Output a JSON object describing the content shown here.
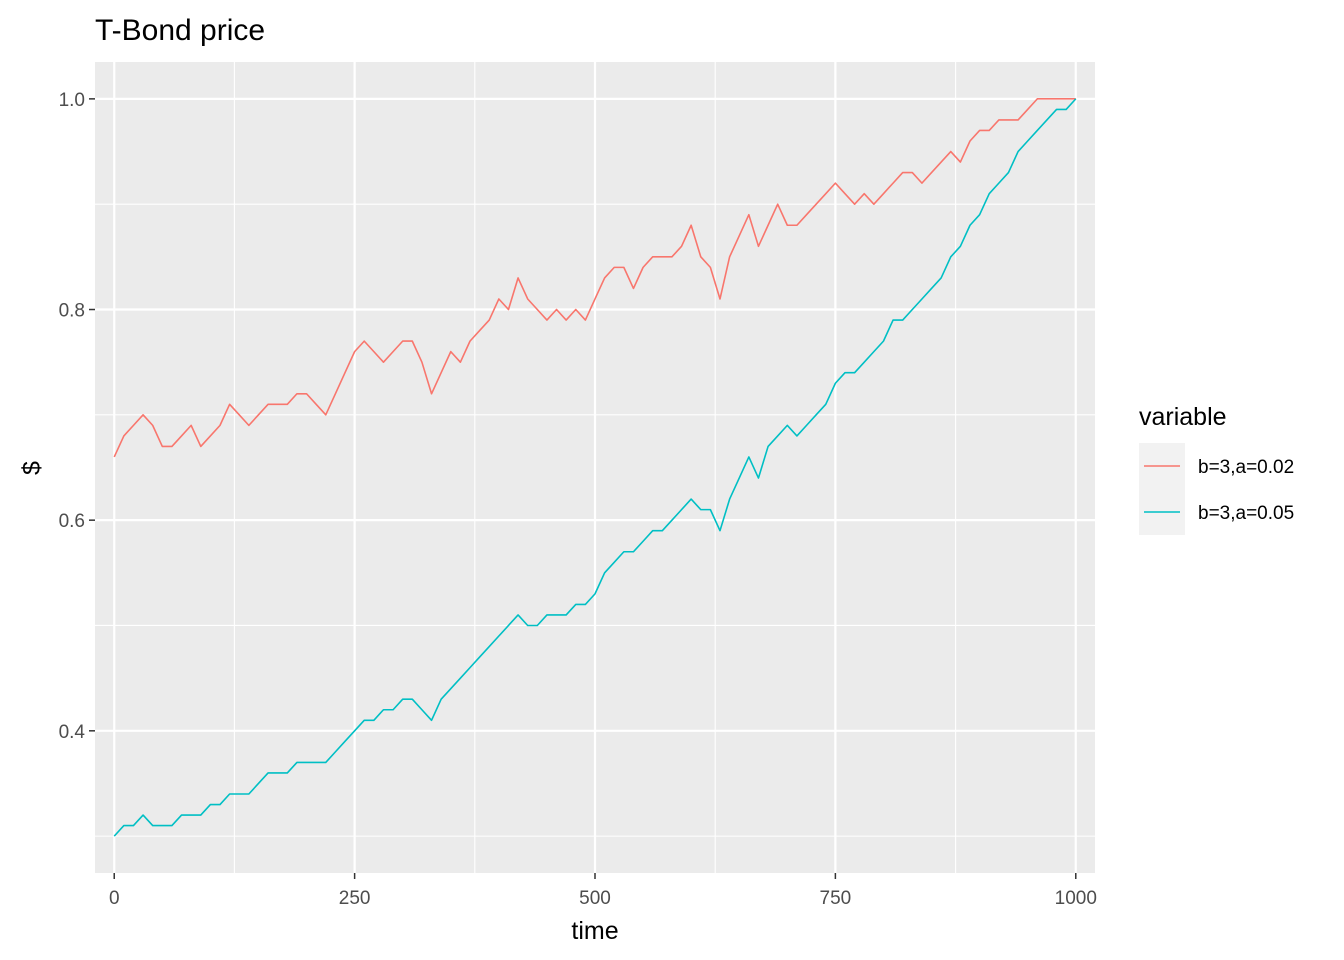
{
  "chart_data": {
    "type": "line",
    "title": "T-Bond price",
    "xlabel": "time",
    "ylabel": "$",
    "xlim": [
      -20,
      1020
    ],
    "ylim": [
      0.265,
      1.035
    ],
    "x_ticks": [
      0,
      250,
      500,
      750,
      1000
    ],
    "x_tick_labels": [
      "0",
      "250",
      "500",
      "750",
      "1000"
    ],
    "y_ticks": [
      0.4,
      0.6,
      0.8,
      1.0
    ],
    "y_tick_labels": [
      "0.4",
      "0.6",
      "0.8",
      "1.0"
    ],
    "grid": true,
    "legend": {
      "title": "variable",
      "position": "right"
    },
    "x": [
      0,
      10,
      20,
      30,
      40,
      50,
      60,
      70,
      80,
      90,
      100,
      110,
      120,
      130,
      140,
      150,
      160,
      170,
      180,
      190,
      200,
      210,
      220,
      230,
      240,
      250,
      260,
      270,
      280,
      290,
      300,
      310,
      320,
      330,
      340,
      350,
      360,
      370,
      380,
      390,
      400,
      410,
      420,
      430,
      440,
      450,
      460,
      470,
      480,
      490,
      500,
      510,
      520,
      530,
      540,
      550,
      560,
      570,
      580,
      590,
      600,
      610,
      620,
      630,
      640,
      650,
      660,
      670,
      680,
      690,
      700,
      710,
      720,
      730,
      740,
      750,
      760,
      770,
      780,
      790,
      800,
      810,
      820,
      830,
      840,
      850,
      860,
      870,
      880,
      890,
      900,
      910,
      920,
      930,
      940,
      950,
      960,
      970,
      980,
      990,
      1000
    ],
    "series": [
      {
        "name": "b=3,a=0.02",
        "color": "#F8766D",
        "values": [
          0.66,
          0.68,
          0.69,
          0.7,
          0.69,
          0.67,
          0.67,
          0.68,
          0.69,
          0.67,
          0.68,
          0.69,
          0.71,
          0.7,
          0.69,
          0.7,
          0.71,
          0.71,
          0.71,
          0.72,
          0.72,
          0.71,
          0.7,
          0.72,
          0.74,
          0.76,
          0.77,
          0.76,
          0.75,
          0.76,
          0.77,
          0.77,
          0.75,
          0.72,
          0.74,
          0.76,
          0.75,
          0.77,
          0.78,
          0.79,
          0.81,
          0.8,
          0.83,
          0.81,
          0.8,
          0.79,
          0.8,
          0.79,
          0.8,
          0.79,
          0.81,
          0.83,
          0.84,
          0.84,
          0.82,
          0.84,
          0.85,
          0.85,
          0.85,
          0.86,
          0.88,
          0.85,
          0.84,
          0.81,
          0.85,
          0.87,
          0.89,
          0.86,
          0.88,
          0.9,
          0.88,
          0.88,
          0.89,
          0.9,
          0.91,
          0.92,
          0.91,
          0.9,
          0.91,
          0.9,
          0.91,
          0.92,
          0.93,
          0.93,
          0.92,
          0.93,
          0.94,
          0.95,
          0.94,
          0.96,
          0.97,
          0.97,
          0.98,
          0.98,
          0.98,
          0.99,
          1.0,
          1.0,
          1.0,
          1.0,
          1.0
        ]
      },
      {
        "name": "b=3,a=0.05",
        "color": "#00BFC4",
        "values": [
          0.3,
          0.31,
          0.31,
          0.32,
          0.31,
          0.31,
          0.31,
          0.32,
          0.32,
          0.32,
          0.33,
          0.33,
          0.34,
          0.34,
          0.34,
          0.35,
          0.36,
          0.36,
          0.36,
          0.37,
          0.37,
          0.37,
          0.37,
          0.38,
          0.39,
          0.4,
          0.41,
          0.41,
          0.42,
          0.42,
          0.43,
          0.43,
          0.42,
          0.41,
          0.43,
          0.44,
          0.45,
          0.46,
          0.47,
          0.48,
          0.49,
          0.5,
          0.51,
          0.5,
          0.5,
          0.51,
          0.51,
          0.51,
          0.52,
          0.52,
          0.53,
          0.55,
          0.56,
          0.57,
          0.57,
          0.58,
          0.59,
          0.59,
          0.6,
          0.61,
          0.62,
          0.61,
          0.61,
          0.59,
          0.62,
          0.64,
          0.66,
          0.64,
          0.67,
          0.68,
          0.69,
          0.68,
          0.69,
          0.7,
          0.71,
          0.73,
          0.74,
          0.74,
          0.75,
          0.76,
          0.77,
          0.79,
          0.79,
          0.8,
          0.81,
          0.82,
          0.83,
          0.85,
          0.86,
          0.88,
          0.89,
          0.91,
          0.92,
          0.93,
          0.95,
          0.96,
          0.97,
          0.98,
          0.99,
          0.99,
          1.0
        ]
      }
    ]
  }
}
